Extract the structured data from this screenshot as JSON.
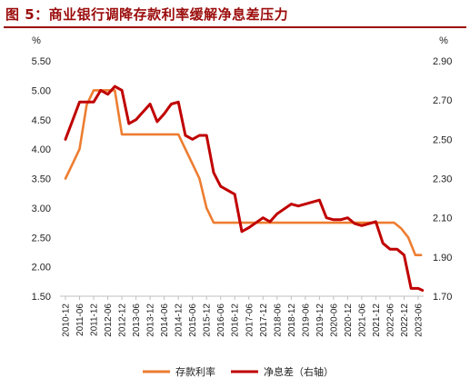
{
  "figure": {
    "title": "图 5：商业银行调降存款利率缓解净息差压力"
  },
  "chart_data": {
    "type": "line",
    "left_unit": "%",
    "right_unit": "%",
    "left_axis": {
      "ylim": [
        1.5,
        5.5
      ],
      "ticks": [
        "1.50",
        "2.00",
        "2.50",
        "3.00",
        "3.50",
        "4.00",
        "4.50",
        "5.00",
        "5.50"
      ]
    },
    "right_axis": {
      "ylim": [
        1.7,
        2.9
      ],
      "ticks": [
        "1.70",
        "1.90",
        "2.10",
        "2.30",
        "2.50",
        "2.70",
        "2.90"
      ]
    },
    "x_categories": [
      "2010-12",
      "2011-06",
      "2011-12",
      "2012-06",
      "2012-12",
      "2013-06",
      "2013-12",
      "2014-06",
      "2014-12",
      "2015-06",
      "2015-12",
      "2016-06",
      "2016-12",
      "2017-06",
      "2017-12",
      "2018-06",
      "2018-12",
      "2019-06",
      "2019-12",
      "2020-06",
      "2020-12",
      "2021-06",
      "2021-12",
      "2022-06",
      "2022-12",
      "2023-06"
    ],
    "series": [
      {
        "name": "存款利率",
        "axis": "left",
        "color": "#ed7d31",
        "points": [
          [
            0,
            3.5
          ],
          [
            0.5,
            3.75
          ],
          [
            1,
            4.0
          ],
          [
            1.5,
            4.75
          ],
          [
            2,
            5.0
          ],
          [
            2.5,
            5.0
          ],
          [
            3,
            5.0
          ],
          [
            3.5,
            5.0
          ],
          [
            4,
            4.25
          ],
          [
            4.5,
            4.25
          ],
          [
            5,
            4.25
          ],
          [
            5.5,
            4.25
          ],
          [
            6,
            4.25
          ],
          [
            6.5,
            4.25
          ],
          [
            7,
            4.25
          ],
          [
            7.5,
            4.25
          ],
          [
            8,
            4.25
          ],
          [
            8.5,
            4.0
          ],
          [
            9,
            3.75
          ],
          [
            9.5,
            3.5
          ],
          [
            10,
            3.0
          ],
          [
            10.5,
            2.75
          ],
          [
            11,
            2.75
          ],
          [
            12,
            2.75
          ],
          [
            13,
            2.75
          ],
          [
            14,
            2.75
          ],
          [
            15,
            2.75
          ],
          [
            16,
            2.75
          ],
          [
            17,
            2.75
          ],
          [
            18,
            2.75
          ],
          [
            19,
            2.75
          ],
          [
            20,
            2.75
          ],
          [
            21,
            2.75
          ],
          [
            22,
            2.75
          ],
          [
            23,
            2.75
          ],
          [
            23.3,
            2.75
          ],
          [
            23.8,
            2.65
          ],
          [
            24.3,
            2.5
          ],
          [
            24.8,
            2.2
          ],
          [
            25.2,
            2.2
          ]
        ]
      },
      {
        "name": "净息差（右轴）",
        "axis": "right",
        "color": "#c00000",
        "points": [
          [
            0,
            2.5
          ],
          [
            1,
            2.69
          ],
          [
            2,
            2.69
          ],
          [
            2.5,
            2.75
          ],
          [
            3,
            2.73
          ],
          [
            3.5,
            2.77
          ],
          [
            4,
            2.75
          ],
          [
            4.5,
            2.58
          ],
          [
            5,
            2.6
          ],
          [
            6,
            2.68
          ],
          [
            6.5,
            2.59
          ],
          [
            7,
            2.63
          ],
          [
            7.5,
            2.68
          ],
          [
            8,
            2.69
          ],
          [
            8.5,
            2.52
          ],
          [
            9,
            2.5
          ],
          [
            9.5,
            2.52
          ],
          [
            10,
            2.52
          ],
          [
            10.5,
            2.33
          ],
          [
            11,
            2.26
          ],
          [
            12,
            2.22
          ],
          [
            12.5,
            2.03
          ],
          [
            13,
            2.05
          ],
          [
            14,
            2.1
          ],
          [
            14.5,
            2.08
          ],
          [
            15,
            2.12
          ],
          [
            16,
            2.17
          ],
          [
            16.5,
            2.16
          ],
          [
            17,
            2.17
          ],
          [
            18,
            2.19
          ],
          [
            18.5,
            2.1
          ],
          [
            19,
            2.09
          ],
          [
            19.5,
            2.09
          ],
          [
            20,
            2.1
          ],
          [
            20.5,
            2.07
          ],
          [
            21,
            2.06
          ],
          [
            22,
            2.08
          ],
          [
            22.5,
            1.97
          ],
          [
            23,
            1.94
          ],
          [
            23.5,
            1.94
          ],
          [
            24,
            1.91
          ],
          [
            24.5,
            1.74
          ],
          [
            25,
            1.74
          ],
          [
            25.3,
            1.73
          ]
        ]
      }
    ],
    "legend": {
      "position": "bottom-center"
    },
    "grid": false
  }
}
